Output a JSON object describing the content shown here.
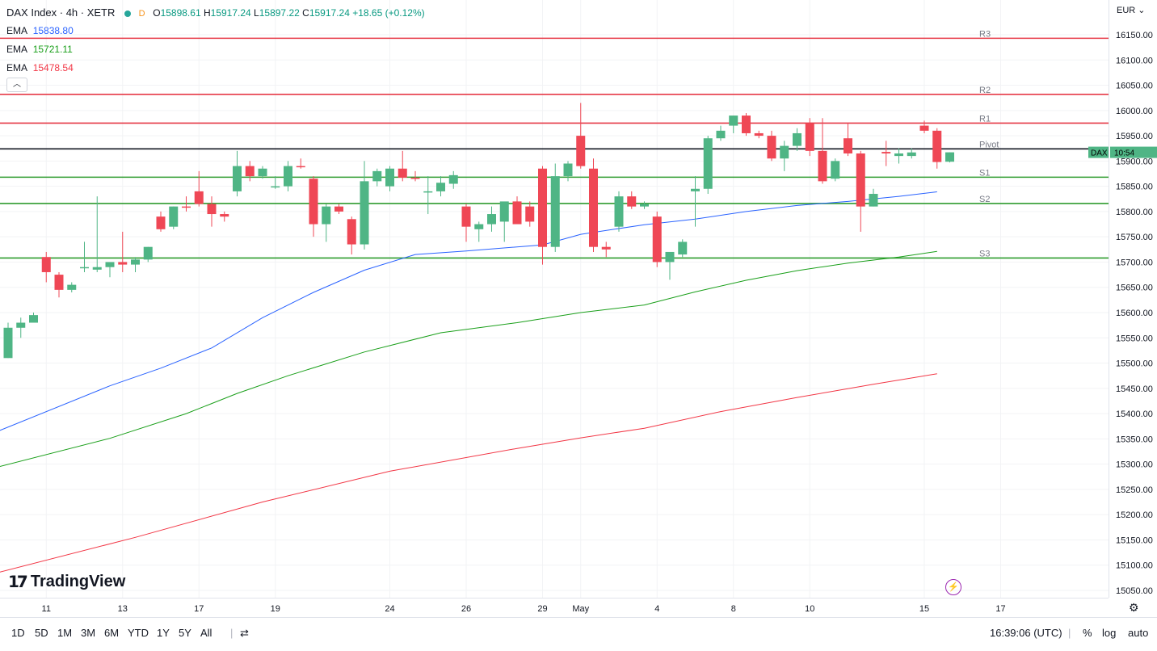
{
  "header": {
    "symbol": "DAX Index · 4h · XETR",
    "timeframe_badge": "D",
    "open_label": "O",
    "open": "15898.61",
    "high_label": "H",
    "high": "15917.24",
    "low_label": "L",
    "low": "15897.22",
    "close_label": "C",
    "close": "15917.24",
    "change": "+18.65 (+0.12%)"
  },
  "indicators": [
    {
      "label": "EMA",
      "value": "15838.80",
      "color": "#2962ff"
    },
    {
      "label": "EMA",
      "value": "15721.11",
      "color": "#1a9f1a"
    },
    {
      "label": "EMA",
      "value": "15478.54",
      "color": "#f23645"
    }
  ],
  "currency": "EUR",
  "brand": "TradingView",
  "current_price_tag": {
    "symbol": "DAX",
    "time_left": "10:54",
    "price": 15917.24
  },
  "timeframes": [
    "1D",
    "5D",
    "1M",
    "3M",
    "6M",
    "YTD",
    "1Y",
    "5Y",
    "All"
  ],
  "clock": "16:39:06 (UTC)",
  "controls": {
    "percent": "%",
    "log": "log",
    "auto": "auto"
  },
  "colors": {
    "up": "#4fb585",
    "down": "#ef4755",
    "support": "#2e9b2e",
    "resistance": "#e63946",
    "pivot": "#131722"
  },
  "chart_data": {
    "type": "candlestick",
    "title": "DAX Index · 4h · XETR",
    "ylim": [
      15030,
      16180
    ],
    "yticks": [
      15050,
      15100,
      15150,
      15200,
      15250,
      15300,
      15350,
      15400,
      15450,
      15500,
      15550,
      15600,
      15650,
      15700,
      15750,
      15800,
      15850,
      15900,
      15950,
      16000,
      16050,
      16100,
      16150
    ],
    "xticks": [
      {
        "label": "11",
        "index": 3
      },
      {
        "label": "13",
        "index": 9
      },
      {
        "label": "17",
        "index": 15
      },
      {
        "label": "19",
        "index": 21
      },
      {
        "label": "24",
        "index": 30
      },
      {
        "label": "26",
        "index": 36
      },
      {
        "label": "29",
        "index": 42
      },
      {
        "label": "May",
        "index": 45
      },
      {
        "label": "4",
        "index": 51
      },
      {
        "label": "8",
        "index": 57
      },
      {
        "label": "10",
        "index": 63
      },
      {
        "label": "15",
        "index": 72
      },
      {
        "label": "17",
        "index": 78
      }
    ],
    "levels": [
      {
        "name": "R3",
        "value": 16143,
        "kind": "resistance"
      },
      {
        "name": "R2",
        "value": 16032,
        "kind": "resistance"
      },
      {
        "name": "R1",
        "value": 15975,
        "kind": "resistance"
      },
      {
        "name": "Pivot",
        "value": 15924,
        "kind": "pivot"
      },
      {
        "name": "S1",
        "value": 15868,
        "kind": "support"
      },
      {
        "name": "S2",
        "value": 15816,
        "kind": "support"
      },
      {
        "name": "S3",
        "value": 15708,
        "kind": "support"
      }
    ],
    "series": [
      {
        "name": "EMA 15838.80",
        "color": "#2962ff",
        "points": [
          [
            -1,
            15363
          ],
          [
            8,
            15455
          ],
          [
            12,
            15490
          ],
          [
            16,
            15530
          ],
          [
            20,
            15590
          ],
          [
            24,
            15640
          ],
          [
            28,
            15684
          ],
          [
            32,
            15715
          ],
          [
            36,
            15722
          ],
          [
            42,
            15734
          ],
          [
            45,
            15755
          ],
          [
            50,
            15774
          ],
          [
            54,
            15785
          ],
          [
            58,
            15800
          ],
          [
            62,
            15812
          ],
          [
            66,
            15820
          ],
          [
            70,
            15830
          ],
          [
            73,
            15839
          ]
        ]
      },
      {
        "name": "EMA 15721.11",
        "color": "#1a9f1a",
        "points": [
          [
            -1,
            15293
          ],
          [
            8,
            15351
          ],
          [
            14,
            15400
          ],
          [
            18,
            15440
          ],
          [
            22,
            15475
          ],
          [
            28,
            15522
          ],
          [
            34,
            15560
          ],
          [
            40,
            15580
          ],
          [
            45,
            15600
          ],
          [
            50,
            15615
          ],
          [
            54,
            15641
          ],
          [
            58,
            15664
          ],
          [
            62,
            15683
          ],
          [
            66,
            15698
          ],
          [
            70,
            15710
          ],
          [
            73,
            15721
          ]
        ]
      },
      {
        "name": "EMA 15478.54",
        "color": "#f23645",
        "points": [
          [
            -1,
            15084
          ],
          [
            10,
            15155
          ],
          [
            20,
            15225
          ],
          [
            30,
            15286
          ],
          [
            40,
            15331
          ],
          [
            45,
            15352
          ],
          [
            50,
            15371
          ],
          [
            56,
            15404
          ],
          [
            62,
            15432
          ],
          [
            68,
            15458
          ],
          [
            73,
            15479
          ]
        ]
      }
    ],
    "candles": [
      [
        0,
        15510,
        15580,
        15510,
        15570
      ],
      [
        1,
        15570,
        15590,
        15550,
        15580
      ],
      [
        2,
        15580,
        15600,
        15580,
        15595
      ],
      [
        3,
        15710,
        15720,
        15660,
        15680
      ],
      [
        4,
        15675,
        15680,
        15630,
        15645
      ],
      [
        5,
        15645,
        15660,
        15640,
        15655
      ],
      [
        6,
        15688,
        15740,
        15680,
        15690
      ],
      [
        7,
        15685,
        15830,
        15680,
        15690
      ],
      [
        8,
        15690,
        15700,
        15670,
        15700
      ],
      [
        9,
        15700,
        15760,
        15680,
        15695
      ],
      [
        10,
        15695,
        15710,
        15680,
        15705
      ],
      [
        11,
        15705,
        15730,
        15700,
        15730
      ],
      [
        12,
        15790,
        15800,
        15760,
        15765
      ],
      [
        13,
        15770,
        15810,
        15765,
        15810
      ],
      [
        14,
        15810,
        15830,
        15800,
        15808
      ],
      [
        15,
        15840,
        15880,
        15810,
        15815
      ],
      [
        16,
        15815,
        15830,
        15770,
        15795
      ],
      [
        17,
        15795,
        15800,
        15780,
        15790
      ],
      [
        18,
        15840,
        15920,
        15830,
        15890
      ],
      [
        19,
        15890,
        15900,
        15860,
        15870
      ],
      [
        20,
        15870,
        15890,
        15865,
        15885
      ],
      [
        21,
        15850,
        15870,
        15845,
        15850
      ],
      [
        22,
        15850,
        15900,
        15840,
        15890
      ],
      [
        23,
        15890,
        15905,
        15885,
        15888
      ],
      [
        24,
        15865,
        15870,
        15750,
        15775
      ],
      [
        25,
        15775,
        15815,
        15740,
        15810
      ],
      [
        26,
        15810,
        15815,
        15795,
        15800
      ],
      [
        27,
        15785,
        15790,
        15715,
        15735
      ],
      [
        28,
        15735,
        15900,
        15725,
        15860
      ],
      [
        29,
        15860,
        15885,
        15850,
        15880
      ],
      [
        30,
        15850,
        15890,
        15840,
        15885
      ],
      [
        31,
        15885,
        15920,
        15860,
        15867
      ],
      [
        32,
        15867,
        15880,
        15860,
        15865
      ],
      [
        33,
        15840,
        15870,
        15795,
        15840
      ],
      [
        34,
        15840,
        15870,
        15830,
        15857
      ],
      [
        35,
        15855,
        15880,
        15845,
        15872
      ],
      [
        36,
        15810,
        15815,
        15740,
        15770
      ],
      [
        37,
        15765,
        15780,
        15740,
        15775
      ],
      [
        38,
        15775,
        15810,
        15760,
        15795
      ],
      [
        39,
        15780,
        15815,
        15740,
        15820
      ],
      [
        40,
        15820,
        15830,
        15780,
        15775
      ],
      [
        41,
        15810,
        15820,
        15770,
        15780
      ],
      [
        42,
        15885,
        15890,
        15695,
        15730
      ],
      [
        43,
        15730,
        15895,
        15720,
        15870
      ],
      [
        44,
        15870,
        15900,
        15860,
        15895
      ],
      [
        45,
        15950,
        16015,
        15885,
        15890
      ],
      [
        46,
        15885,
        15905,
        15720,
        15730
      ],
      [
        47,
        15730,
        15740,
        15710,
        15725
      ],
      [
        48,
        15770,
        15840,
        15760,
        15830
      ],
      [
        49,
        15830,
        15840,
        15805,
        15810
      ],
      [
        50,
        15810,
        15820,
        15805,
        15815
      ],
      [
        51,
        15790,
        15800,
        15690,
        15700
      ],
      [
        52,
        15700,
        15720,
        15665,
        15720
      ],
      [
        53,
        15715,
        15745,
        15710,
        15740
      ],
      [
        54,
        15840,
        15870,
        15770,
        15845
      ],
      [
        55,
        15845,
        15950,
        15835,
        15945
      ],
      [
        56,
        15945,
        15970,
        15940,
        15960
      ],
      [
        57,
        15970,
        15990,
        15955,
        15990
      ],
      [
        58,
        15990,
        15995,
        15950,
        15955
      ],
      [
        59,
        15955,
        15960,
        15945,
        15950
      ],
      [
        60,
        15950,
        15960,
        15900,
        15905
      ],
      [
        61,
        15905,
        15940,
        15880,
        15930
      ],
      [
        62,
        15930,
        15965,
        15920,
        15955
      ],
      [
        63,
        15975,
        15985,
        15910,
        15920
      ],
      [
        64,
        15920,
        15985,
        15855,
        15860
      ],
      [
        65,
        15865,
        15905,
        15860,
        15900
      ],
      [
        66,
        15945,
        15975,
        15910,
        15915
      ],
      [
        67,
        15915,
        15920,
        15760,
        15810
      ],
      [
        68,
        15810,
        15845,
        15810,
        15835
      ],
      [
        69,
        15918,
        15940,
        15890,
        15915
      ],
      [
        70,
        15910,
        15925,
        15895,
        15915
      ],
      [
        71,
        15910,
        15925,
        15905,
        15917
      ],
      [
        72,
        15970,
        15980,
        15955,
        15960
      ],
      [
        73,
        15960,
        15965,
        15885,
        15898
      ],
      [
        74,
        15898.61,
        15917.24,
        15897.22,
        15917.24
      ]
    ]
  }
}
